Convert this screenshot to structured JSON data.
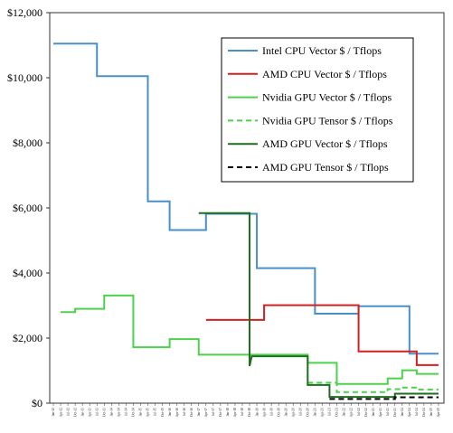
{
  "chart_data": {
    "type": "line",
    "title": "",
    "xlabel": "",
    "ylabel": "",
    "ylim": [
      0,
      12000
    ],
    "yticks": [
      0,
      2000,
      4000,
      6000,
      8000,
      10000,
      12000
    ],
    "ytick_labels": [
      "$0",
      "$2,000",
      "$4,000",
      "$6,000",
      "$8,000",
      "$10,000",
      "$12,000"
    ],
    "grid": false,
    "legend_position": "top-right",
    "x_categories": [
      "Jan-12",
      "Apr-12",
      "Jul-12",
      "Oct-12",
      "Jan-13",
      "Apr-13",
      "Jul-13",
      "Oct-13",
      "Jan-14",
      "Apr-14",
      "Jul-14",
      "Oct-14",
      "Jan-15",
      "Apr-15",
      "Jul-15",
      "Oct-15",
      "Jan-16",
      "Apr-16",
      "Jul-16",
      "Oct-16",
      "Jan-17",
      "Apr-17",
      "Jul-17",
      "Oct-17",
      "Jan-18",
      "Apr-18",
      "Jul-18",
      "Oct-18",
      "Jan-19",
      "Apr-19",
      "Jul-19",
      "Oct-19",
      "Jan-20",
      "Apr-20",
      "Jul-20",
      "Oct-20",
      "Jan-21",
      "Apr-21",
      "Jul-21",
      "Oct-21",
      "Jan-22",
      "Apr-22",
      "Jul-22",
      "Oct-22",
      "Jan-23",
      "Apr-23",
      "Jul-23",
      "Oct-23",
      "Jan-24",
      "Apr-24",
      "Jul-24",
      "Oct-24",
      "Jan-25",
      "Apr-25"
    ],
    "series": [
      {
        "name": "Intel CPU Vector $ / Tflops",
        "color": "#4a90c8",
        "dash": "solid",
        "width": 2,
        "points": [
          [
            0,
            11050
          ],
          [
            6,
            11050
          ],
          [
            6,
            10050
          ],
          [
            13,
            10050
          ],
          [
            13,
            6200
          ],
          [
            16,
            6200
          ],
          [
            16,
            5320
          ],
          [
            21,
            5320
          ],
          [
            21,
            5820
          ],
          [
            28,
            5820
          ],
          [
            28,
            4150
          ],
          [
            36,
            4150
          ],
          [
            36,
            2750
          ],
          [
            42,
            2750
          ],
          [
            42,
            2980
          ],
          [
            49,
            2980
          ],
          [
            49,
            1520
          ],
          [
            53,
            1520
          ]
        ]
      },
      {
        "name": "AMD CPU Vector $ / Tflops",
        "color": "#d42020",
        "dash": "solid",
        "width": 2,
        "points": [
          [
            21,
            2560
          ],
          [
            29,
            2560
          ],
          [
            29,
            3010
          ],
          [
            42,
            3010
          ],
          [
            42,
            1590
          ],
          [
            50,
            1590
          ],
          [
            50,
            1170
          ],
          [
            53,
            1170
          ]
        ]
      },
      {
        "name": "Nvidia GPU Vector $ / Tflops",
        "color": "#4cd14c",
        "dash": "solid",
        "width": 2,
        "points": [
          [
            1,
            2800
          ],
          [
            3,
            2800
          ],
          [
            3,
            2900
          ],
          [
            7,
            2900
          ],
          [
            7,
            3310
          ],
          [
            11,
            3310
          ],
          [
            11,
            1720
          ],
          [
            16,
            1720
          ],
          [
            16,
            1970
          ],
          [
            20,
            1970
          ],
          [
            20,
            1490
          ],
          [
            35,
            1490
          ],
          [
            35,
            1240
          ],
          [
            39,
            1240
          ],
          [
            39,
            590
          ],
          [
            46,
            590
          ],
          [
            46,
            760
          ],
          [
            48,
            760
          ],
          [
            48,
            1010
          ],
          [
            50,
            1010
          ],
          [
            50,
            900
          ],
          [
            53,
            900
          ]
        ]
      },
      {
        "name": "Nvidia  GPU Tensor $ / Tflops",
        "color": "#4cd14c",
        "dash": "dashed",
        "width": 2,
        "points": [
          [
            35,
            630
          ],
          [
            39,
            630
          ],
          [
            39,
            340
          ],
          [
            46,
            340
          ],
          [
            46,
            430
          ],
          [
            48,
            430
          ],
          [
            48,
            480
          ],
          [
            50,
            480
          ],
          [
            50,
            420
          ],
          [
            53,
            420
          ]
        ]
      },
      {
        "name": "AMD GPU Vector $ / Tflops",
        "color": "#1e6e1e",
        "dash": "solid",
        "width": 2,
        "points": [
          [
            20,
            5840
          ],
          [
            27,
            5840
          ],
          [
            27,
            1140
          ],
          [
            27.3,
            1440
          ],
          [
            35,
            1440
          ],
          [
            35,
            560
          ],
          [
            38,
            560
          ],
          [
            38,
            190
          ],
          [
            47,
            190
          ],
          [
            47,
            290
          ],
          [
            53,
            290
          ]
        ]
      },
      {
        "name": "AMD GPU Tensor $ / Tflops",
        "color": "#000000",
        "dash": "dashed",
        "width": 2,
        "points": [
          [
            38,
            130
          ],
          [
            47,
            130
          ],
          [
            47,
            180
          ],
          [
            53,
            180
          ]
        ]
      }
    ]
  }
}
